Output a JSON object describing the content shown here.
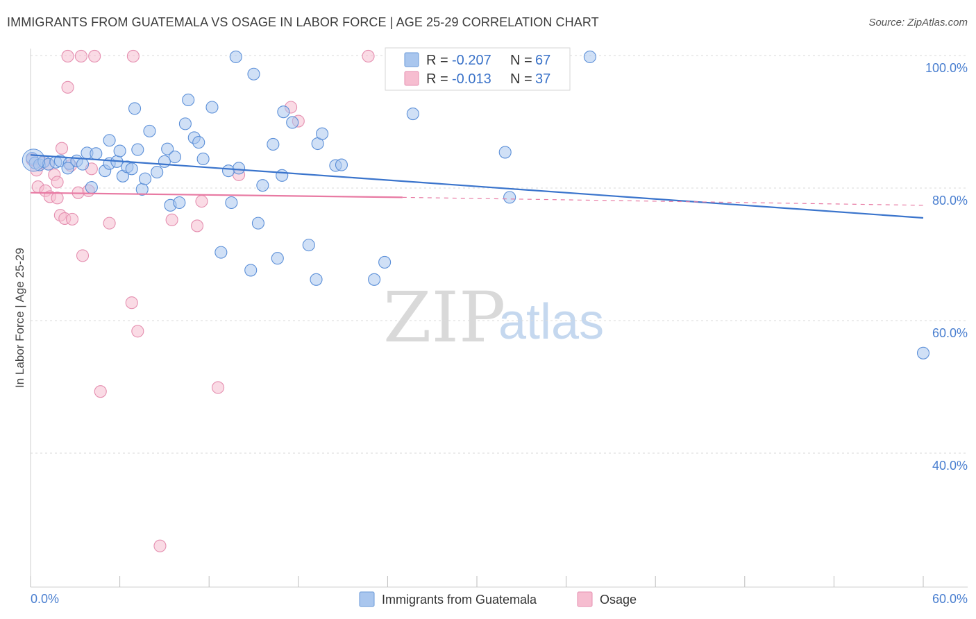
{
  "title": "IMMIGRANTS FROM GUATEMALA VS OSAGE IN LABOR FORCE | AGE 25-29 CORRELATION CHART",
  "source": "Source: ZipAtlas.com",
  "watermark": {
    "zip": "ZIP",
    "atlas": "atlas"
  },
  "colors": {
    "blue": "#3a74cc",
    "blue_fill": "#a9c6ee",
    "pink": "#e87aa3",
    "pink_fill": "#f6bdd0",
    "tick_text": "#4a7fd0",
    "grid": "#d8d8d8"
  },
  "legend": {
    "r_label": "R =",
    "n_label": "N =",
    "rows": [
      {
        "series": "blue",
        "r": "-0.207",
        "n": "67"
      },
      {
        "series": "pink",
        "r": "-0.013",
        "n": "37"
      }
    ]
  },
  "chart_data": {
    "type": "scatter",
    "title": "IMMIGRANTS FROM GUATEMALA VS OSAGE IN LABOR FORCE | AGE 25-29 CORRELATION CHART",
    "xlabel": "",
    "ylabel": "In Labor Force | Age 25-29",
    "xlim": [
      0,
      60
    ],
    "ylim": [
      20,
      101
    ],
    "x_tick_labels": [
      "0.0%",
      "60.0%"
    ],
    "y_ticks": [
      40,
      60,
      80,
      100
    ],
    "y_tick_labels": [
      "40.0%",
      "60.0%",
      "80.0%",
      "100.0%"
    ],
    "grid": true,
    "legend_position": "top-center",
    "series": [
      {
        "name": "Immigrants from Guatemala",
        "color": "#3a74cc",
        "trend": {
          "x0": 0,
          "y0": 85.0,
          "x1": 60,
          "y1": 75.5
        },
        "points": [
          [
            0.1,
            84.5
          ],
          [
            0.3,
            83.8
          ],
          [
            0.6,
            83.5
          ],
          [
            0.9,
            84.0
          ],
          [
            1.2,
            83.6
          ],
          [
            1.7,
            83.9
          ],
          [
            2.0,
            84.1
          ],
          [
            2.6,
            83.7
          ],
          [
            3.1,
            84.1
          ],
          [
            3.5,
            83.6
          ],
          [
            3.8,
            85.3
          ],
          [
            4.4,
            85.2
          ],
          [
            4.1,
            80.1
          ],
          [
            5.0,
            82.6
          ],
          [
            5.3,
            83.7
          ],
          [
            5.3,
            87.2
          ],
          [
            5.8,
            84.0
          ],
          [
            6.0,
            85.6
          ],
          [
            6.2,
            81.8
          ],
          [
            6.5,
            83.2
          ],
          [
            6.8,
            82.9
          ],
          [
            7.2,
            85.8
          ],
          [
            7.5,
            79.8
          ],
          [
            7.7,
            81.4
          ],
          [
            8.0,
            88.6
          ],
          [
            8.5,
            82.4
          ],
          [
            9.0,
            84.0
          ],
          [
            9.2,
            85.9
          ],
          [
            9.4,
            77.4
          ],
          [
            9.7,
            84.7
          ],
          [
            10.0,
            77.8
          ],
          [
            10.4,
            89.7
          ],
          [
            10.6,
            93.3
          ],
          [
            11.0,
            87.6
          ],
          [
            11.3,
            86.9
          ],
          [
            11.6,
            84.4
          ],
          [
            12.2,
            92.2
          ],
          [
            12.8,
            70.3
          ],
          [
            13.3,
            82.6
          ],
          [
            13.5,
            77.8
          ],
          [
            13.8,
            99.8
          ],
          [
            14.8,
            67.6
          ],
          [
            15.0,
            97.2
          ],
          [
            15.3,
            74.7
          ],
          [
            15.6,
            80.4
          ],
          [
            16.3,
            86.6
          ],
          [
            16.6,
            69.4
          ],
          [
            16.9,
            81.9
          ],
          [
            17.0,
            91.5
          ],
          [
            17.6,
            89.9
          ],
          [
            18.7,
            71.4
          ],
          [
            19.2,
            66.2
          ],
          [
            19.3,
            86.7
          ],
          [
            19.6,
            88.2
          ],
          [
            20.5,
            83.4
          ],
          [
            20.9,
            83.5
          ],
          [
            23.1,
            66.2
          ],
          [
            23.8,
            68.8
          ],
          [
            25.7,
            91.2
          ],
          [
            31.9,
            85.4
          ],
          [
            32.2,
            78.6
          ],
          [
            37.6,
            99.8
          ],
          [
            60.0,
            55.1
          ],
          [
            26.0,
            99.8
          ],
          [
            7.0,
            92.0
          ],
          [
            14.0,
            83.0
          ],
          [
            2.5,
            83.0
          ]
        ]
      },
      {
        "name": "Osage",
        "color": "#e87aa3",
        "trend": {
          "x0": 0,
          "y0": 79.3,
          "x1": 25,
          "y1": 78.6,
          "dash_x1": 60,
          "dash_y1": 77.4
        },
        "points": [
          [
            0.1,
            84.3
          ],
          [
            0.4,
            82.7
          ],
          [
            0.5,
            80.2
          ],
          [
            0.8,
            83.8
          ],
          [
            1.0,
            79.6
          ],
          [
            1.3,
            78.7
          ],
          [
            1.6,
            82.0
          ],
          [
            1.8,
            80.9
          ],
          [
            1.8,
            78.5
          ],
          [
            2.0,
            75.9
          ],
          [
            2.1,
            86.0
          ],
          [
            2.3,
            75.4
          ],
          [
            2.5,
            95.2
          ],
          [
            2.5,
            99.9
          ],
          [
            2.7,
            83.4
          ],
          [
            2.8,
            75.3
          ],
          [
            3.2,
            79.3
          ],
          [
            3.4,
            99.9
          ],
          [
            3.5,
            69.8
          ],
          [
            3.9,
            79.6
          ],
          [
            4.1,
            82.9
          ],
          [
            4.3,
            99.9
          ],
          [
            4.7,
            49.3
          ],
          [
            5.3,
            74.7
          ],
          [
            6.8,
            62.7
          ],
          [
            6.9,
            99.9
          ],
          [
            7.2,
            58.4
          ],
          [
            8.7,
            26.0
          ],
          [
            9.5,
            75.2
          ],
          [
            11.2,
            74.3
          ],
          [
            11.5,
            78.0
          ],
          [
            12.6,
            49.9
          ],
          [
            14.0,
            82.0
          ],
          [
            17.5,
            92.2
          ],
          [
            18.0,
            90.1
          ],
          [
            22.7,
            99.9
          ],
          [
            1.2,
            83.6
          ]
        ]
      }
    ]
  },
  "bottom_legend": [
    {
      "series": "blue",
      "label": "Immigrants from Guatemala"
    },
    {
      "series": "pink",
      "label": "Osage"
    }
  ]
}
